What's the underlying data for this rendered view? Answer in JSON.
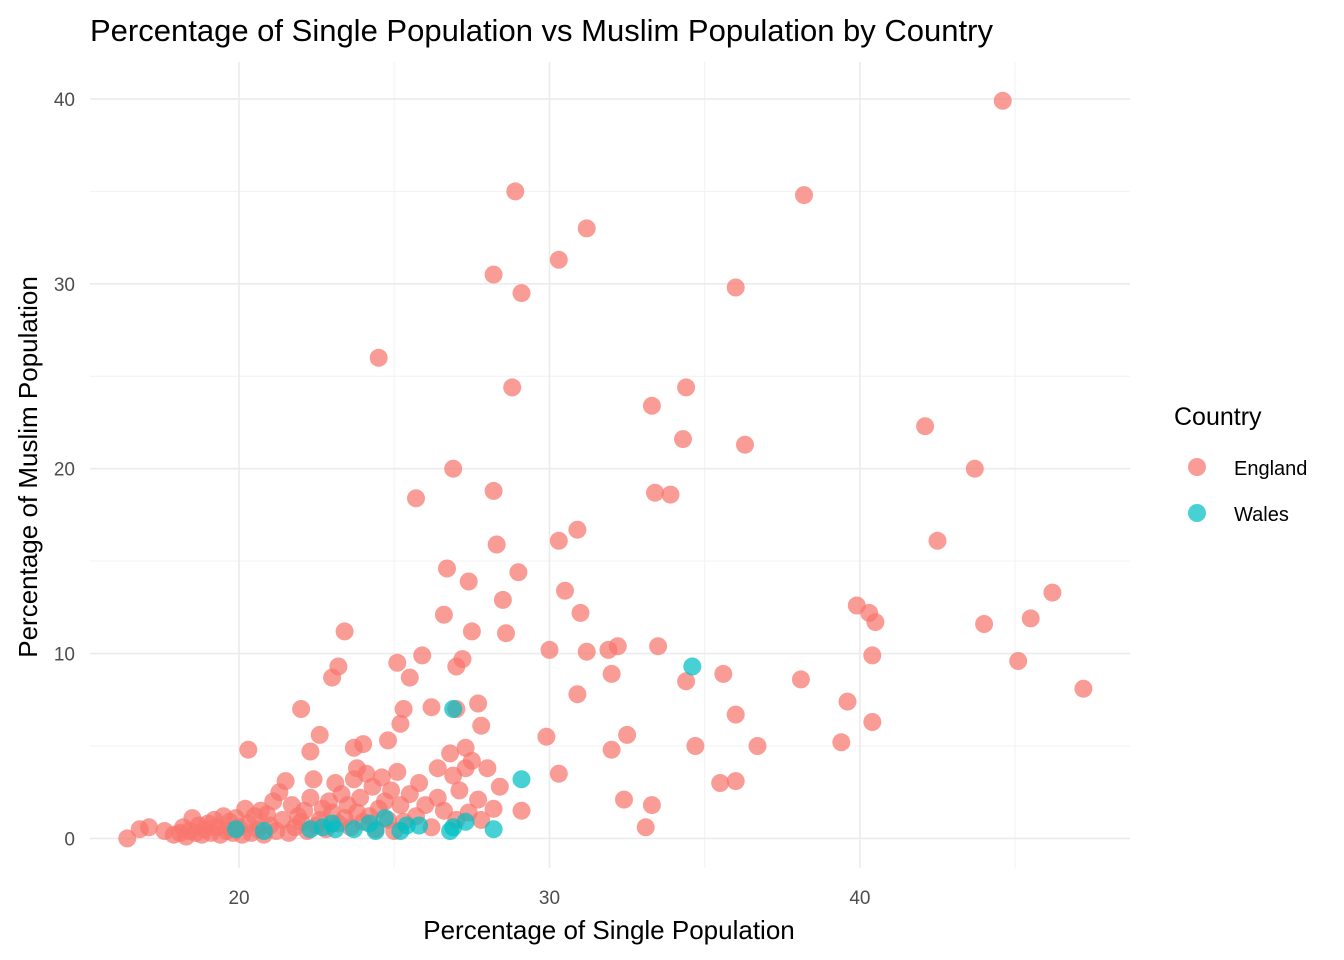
{
  "chart_data": {
    "type": "scatter",
    "title": "Percentage of Single Population vs Muslim Population by Country",
    "xlabel": "Percentage of Single Population",
    "ylabel": "Percentage of Muslim Population",
    "xlim": [
      15.2,
      48.7
    ],
    "ylim": [
      -1.6,
      42
    ],
    "x_ticks": [
      20,
      30,
      40
    ],
    "y_ticks": [
      0,
      10,
      20,
      30,
      40
    ],
    "x_tick_labels": [
      "20",
      "30",
      "40"
    ],
    "y_tick_labels": [
      "0",
      "10",
      "20",
      "30",
      "40"
    ],
    "grid": true,
    "legend": {
      "title": "Country",
      "position": "right"
    },
    "series": [
      {
        "name": "England",
        "color": "#F8766D",
        "points": [
          [
            16.4,
            0.0
          ],
          [
            16.8,
            0.5
          ],
          [
            17.1,
            0.6
          ],
          [
            17.6,
            0.4
          ],
          [
            17.9,
            0.2
          ],
          [
            18.1,
            0.3
          ],
          [
            18.2,
            0.6
          ],
          [
            18.3,
            0.1
          ],
          [
            18.4,
            0.4
          ],
          [
            18.5,
            1.1
          ],
          [
            18.6,
            0.3
          ],
          [
            18.7,
            0.7
          ],
          [
            18.8,
            0.2
          ],
          [
            18.9,
            0.5
          ],
          [
            19.0,
            0.8
          ],
          [
            19.1,
            0.3
          ],
          [
            19.2,
            1.0
          ],
          [
            19.3,
            0.6
          ],
          [
            19.4,
            0.2
          ],
          [
            19.5,
            1.2
          ],
          [
            19.6,
            0.4
          ],
          [
            19.7,
            0.9
          ],
          [
            19.8,
            0.3
          ],
          [
            19.9,
            1.1
          ],
          [
            20.0,
            0.6
          ],
          [
            20.1,
            0.2
          ],
          [
            20.2,
            1.6
          ],
          [
            20.3,
            0.8
          ],
          [
            20.4,
            0.3
          ],
          [
            20.5,
            1.2
          ],
          [
            20.6,
            0.5
          ],
          [
            20.7,
            1.5
          ],
          [
            20.8,
            0.2
          ],
          [
            20.9,
            1.3
          ],
          [
            21.0,
            0.7
          ],
          [
            21.1,
            2.0
          ],
          [
            21.2,
            0.4
          ],
          [
            21.3,
            2.5
          ],
          [
            21.4,
            1.0
          ],
          [
            21.5,
            3.1
          ],
          [
            21.6,
            0.3
          ],
          [
            21.7,
            1.8
          ],
          [
            21.8,
            0.6
          ],
          [
            21.9,
            1.2
          ],
          [
            22.0,
            0.9
          ],
          [
            22.1,
            1.5
          ],
          [
            22.2,
            0.4
          ],
          [
            22.3,
            2.2
          ],
          [
            22.4,
            3.2
          ],
          [
            22.5,
            0.7
          ],
          [
            22.6,
            1.0
          ],
          [
            22.7,
            1.6
          ],
          [
            22.8,
            0.5
          ],
          [
            22.9,
            2.0
          ],
          [
            23.0,
            1.4
          ],
          [
            23.1,
            3.0
          ],
          [
            23.2,
            0.8
          ],
          [
            23.3,
            2.4
          ],
          [
            23.4,
            1.1
          ],
          [
            23.5,
            1.8
          ],
          [
            23.6,
            0.6
          ],
          [
            23.7,
            3.2
          ],
          [
            23.8,
            1.4
          ],
          [
            23.9,
            2.2
          ],
          [
            24.0,
            0.9
          ],
          [
            24.1,
            3.5
          ],
          [
            24.2,
            1.2
          ],
          [
            24.3,
            2.8
          ],
          [
            24.4,
            0.5
          ],
          [
            24.5,
            1.6
          ],
          [
            24.6,
            3.3
          ],
          [
            24.7,
            2.0
          ],
          [
            24.8,
            1.0
          ],
          [
            24.9,
            2.6
          ],
          [
            25.0,
            0.4
          ],
          [
            25.1,
            3.6
          ],
          [
            25.2,
            1.8
          ],
          [
            25.3,
            0.9
          ],
          [
            25.5,
            2.4
          ],
          [
            25.7,
            1.2
          ],
          [
            25.8,
            3.0
          ],
          [
            26.0,
            1.8
          ],
          [
            26.2,
            0.6
          ],
          [
            26.4,
            2.2
          ],
          [
            26.6,
            1.5
          ],
          [
            26.8,
            4.6
          ],
          [
            26.9,
            3.4
          ],
          [
            27.0,
            1.0
          ],
          [
            27.1,
            2.6
          ],
          [
            27.3,
            3.8
          ],
          [
            27.4,
            1.4
          ],
          [
            27.5,
            4.2
          ],
          [
            27.7,
            2.1
          ],
          [
            27.8,
            1.0
          ],
          [
            28.0,
            3.8
          ],
          [
            28.2,
            1.6
          ],
          [
            28.4,
            2.8
          ],
          [
            20.3,
            4.8
          ],
          [
            22.0,
            7.0
          ],
          [
            22.3,
            4.7
          ],
          [
            22.6,
            5.6
          ],
          [
            23.2,
            9.3
          ],
          [
            23.4,
            11.2
          ],
          [
            23.0,
            8.7
          ],
          [
            23.7,
            4.9
          ],
          [
            24.0,
            5.1
          ],
          [
            24.5,
            26.0
          ],
          [
            24.8,
            5.3
          ],
          [
            25.1,
            9.5
          ],
          [
            25.3,
            7.0
          ],
          [
            25.5,
            8.7
          ],
          [
            25.7,
            18.4
          ],
          [
            25.9,
            9.9
          ],
          [
            26.2,
            7.1
          ],
          [
            26.6,
            12.1
          ],
          [
            26.7,
            14.6
          ],
          [
            26.9,
            20.0
          ],
          [
            27.0,
            7.0
          ],
          [
            27.2,
            9.7
          ],
          [
            27.4,
            13.9
          ],
          [
            27.5,
            11.2
          ],
          [
            27.7,
            7.3
          ],
          [
            27.8,
            6.1
          ],
          [
            28.2,
            30.5
          ],
          [
            28.2,
            18.8
          ],
          [
            28.3,
            15.9
          ],
          [
            28.5,
            12.9
          ],
          [
            28.6,
            11.1
          ],
          [
            28.8,
            24.4
          ],
          [
            28.9,
            35.0
          ],
          [
            29.0,
            14.4
          ],
          [
            29.1,
            29.5
          ],
          [
            30.0,
            10.2
          ],
          [
            30.3,
            16.1
          ],
          [
            30.3,
            31.3
          ],
          [
            30.5,
            13.4
          ],
          [
            30.9,
            16.7
          ],
          [
            31.0,
            12.2
          ],
          [
            31.2,
            33.0
          ],
          [
            30.9,
            7.8
          ],
          [
            31.2,
            10.1
          ],
          [
            31.9,
            10.2
          ],
          [
            32.2,
            10.4
          ],
          [
            32.0,
            8.9
          ],
          [
            32.0,
            4.8
          ],
          [
            32.5,
            5.6
          ],
          [
            32.4,
            2.1
          ],
          [
            33.1,
            0.6
          ],
          [
            33.3,
            23.4
          ],
          [
            33.4,
            18.7
          ],
          [
            33.5,
            10.4
          ],
          [
            33.9,
            18.6
          ],
          [
            34.3,
            21.6
          ],
          [
            34.4,
            24.4
          ],
          [
            34.4,
            8.5
          ],
          [
            34.7,
            5.0
          ],
          [
            35.6,
            8.9
          ],
          [
            35.5,
            3.0
          ],
          [
            36.0,
            6.7
          ],
          [
            36.0,
            3.1
          ],
          [
            36.0,
            29.8
          ],
          [
            36.3,
            21.3
          ],
          [
            36.7,
            5.0
          ],
          [
            38.2,
            34.8
          ],
          [
            38.1,
            8.6
          ],
          [
            39.4,
            5.2
          ],
          [
            39.6,
            7.4
          ],
          [
            39.9,
            12.6
          ],
          [
            40.3,
            12.2
          ],
          [
            40.5,
            11.7
          ],
          [
            40.4,
            9.9
          ],
          [
            40.4,
            6.3
          ],
          [
            42.1,
            22.3
          ],
          [
            42.5,
            16.1
          ],
          [
            43.7,
            20.0
          ],
          [
            44.0,
            11.6
          ],
          [
            44.6,
            39.9
          ],
          [
            45.1,
            9.6
          ],
          [
            45.5,
            11.9
          ],
          [
            46.2,
            13.3
          ],
          [
            47.2,
            8.1
          ],
          [
            27.3,
            4.9
          ],
          [
            29.9,
            5.5
          ],
          [
            30.3,
            3.5
          ],
          [
            33.3,
            1.8
          ],
          [
            27.0,
            9.3
          ],
          [
            29.1,
            1.5
          ],
          [
            25.2,
            6.2
          ],
          [
            23.8,
            3.8
          ],
          [
            26.4,
            3.8
          ]
        ]
      },
      {
        "name": "Wales",
        "color": "#00BFC4",
        "points": [
          [
            19.9,
            0.5
          ],
          [
            20.8,
            0.4
          ],
          [
            22.3,
            0.5
          ],
          [
            22.7,
            0.6
          ],
          [
            23.0,
            0.8
          ],
          [
            23.1,
            0.5
          ],
          [
            23.7,
            0.5
          ],
          [
            24.2,
            0.8
          ],
          [
            24.4,
            0.4
          ],
          [
            24.7,
            1.1
          ],
          [
            25.2,
            0.4
          ],
          [
            25.4,
            0.7
          ],
          [
            25.8,
            0.7
          ],
          [
            26.8,
            0.4
          ],
          [
            26.9,
            0.6
          ],
          [
            26.9,
            7.0
          ],
          [
            27.3,
            0.9
          ],
          [
            28.2,
            0.5
          ],
          [
            29.1,
            3.2
          ],
          [
            34.6,
            9.3
          ]
        ]
      }
    ]
  }
}
